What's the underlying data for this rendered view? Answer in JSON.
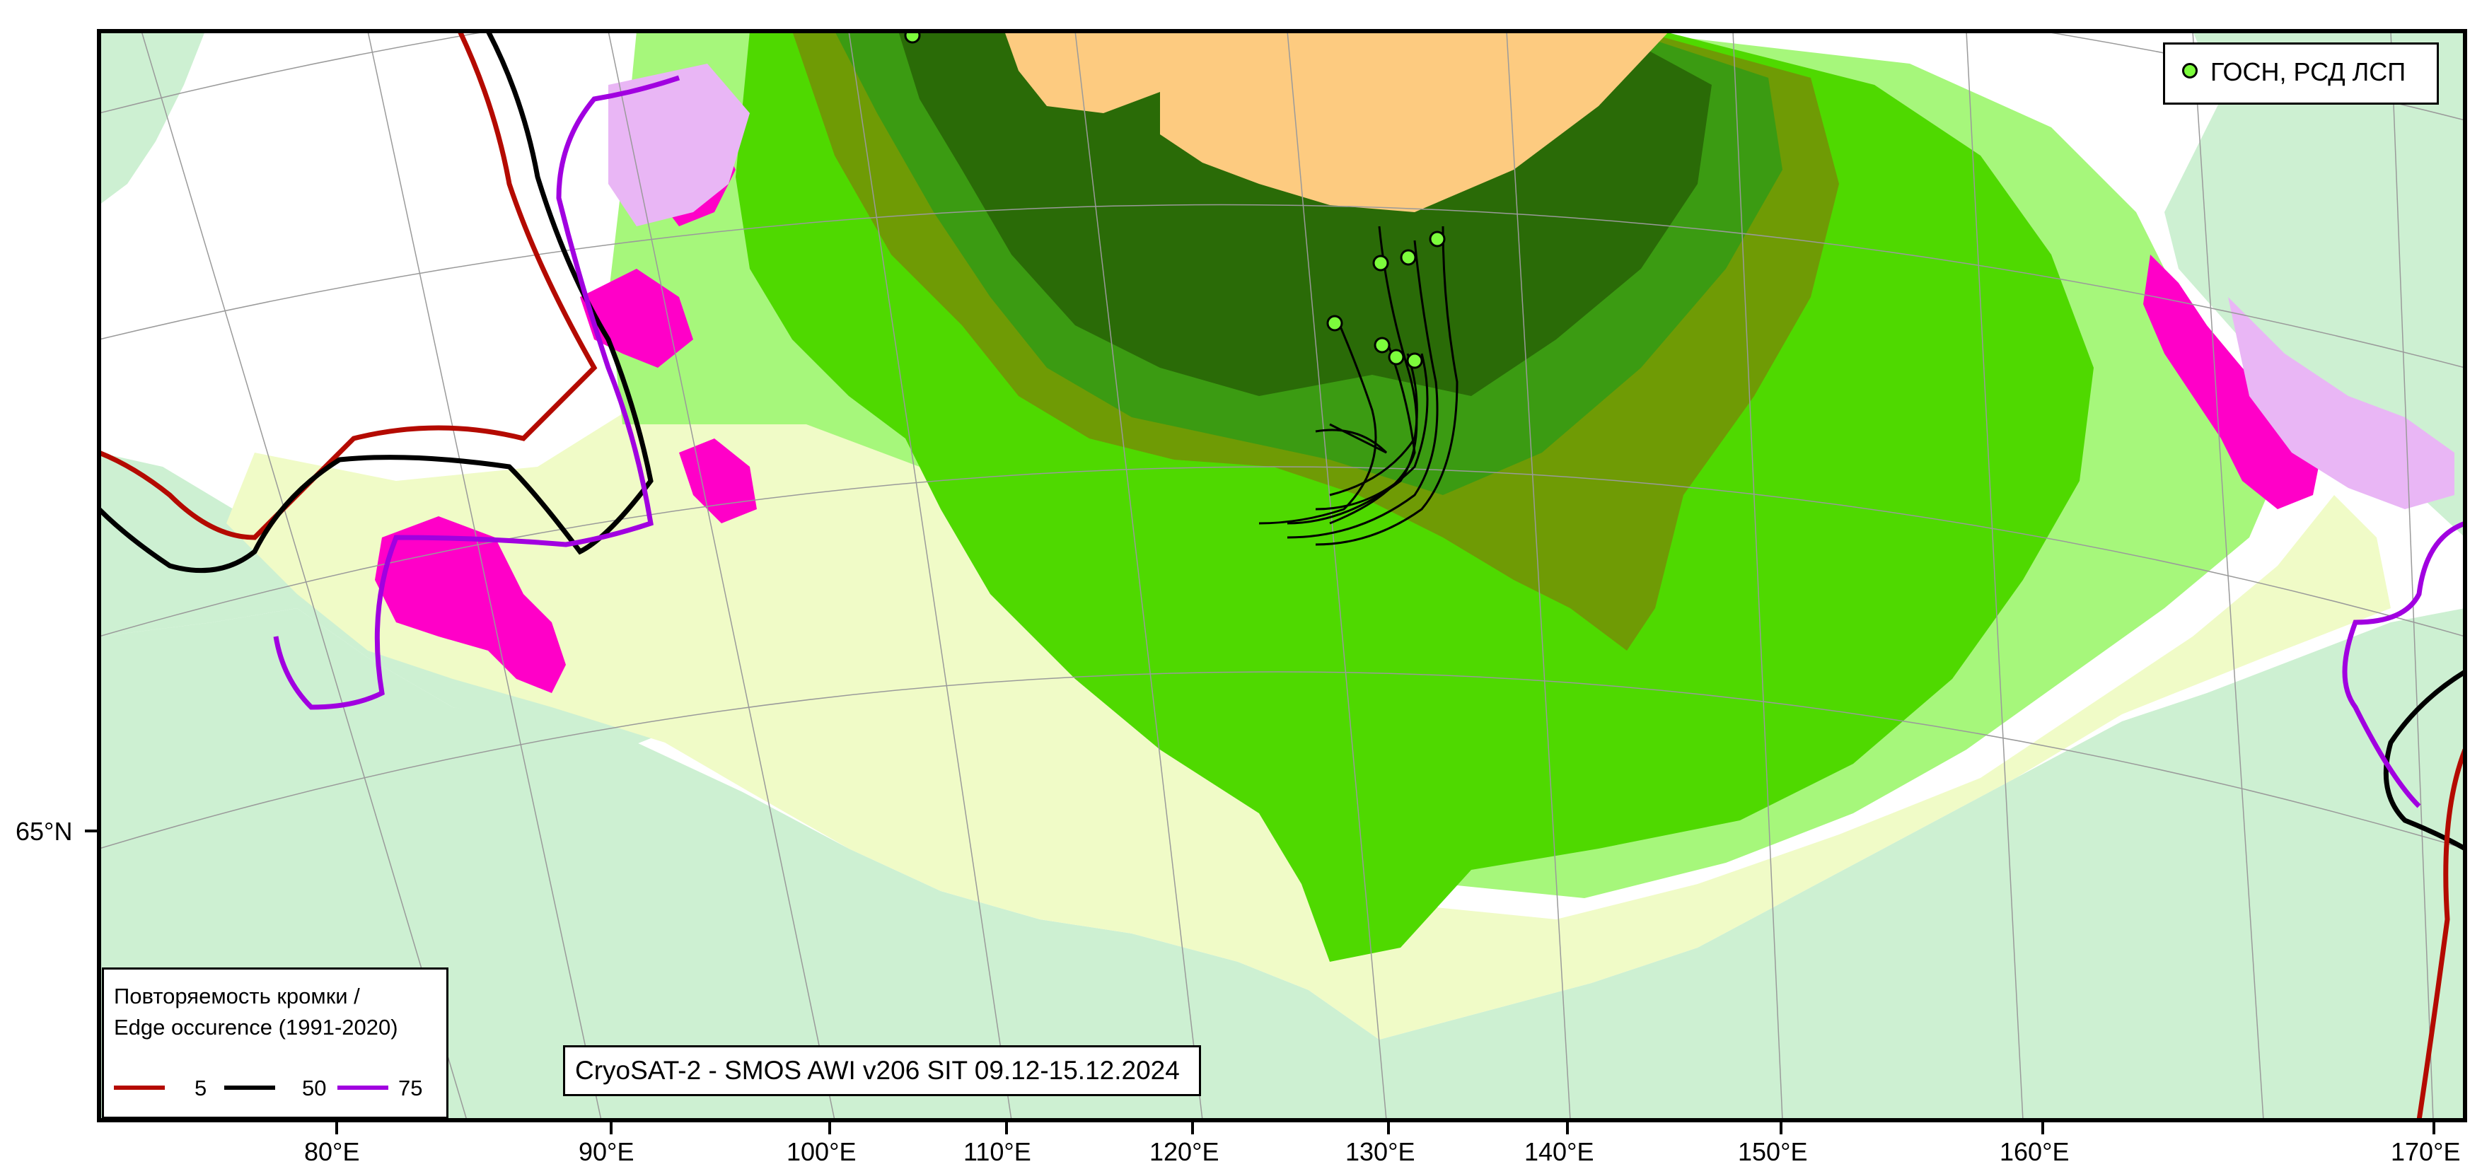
{
  "map": {
    "title_caption": "CryoSAT-2 - SMOS AWI v206 SIT 09.12-15.12.2024",
    "colors": {
      "land": "#cdf0d2",
      "very_thin_ice": "#f0fbc7",
      "thin_ice": "#a6f77b",
      "medium_ice": "#75e34d",
      "medium_ice_2": "#4fd900",
      "olive_ice": "#6f9b05",
      "thick_ice": "#3b9b12",
      "very_thick_ice": "#2a6b07",
      "pole_hole": "#fdcb80",
      "magenta_edge": "#ff00c8",
      "light_magenta": "#e9b6f5",
      "edge_5": "#b40a00",
      "edge_50": "#000000",
      "edge_75": "#a100e0",
      "drifter": "#7CFC3C"
    },
    "latitude_labels": [
      {
        "label": "65°N"
      }
    ],
    "longitude_labels": [
      {
        "label": "80°E"
      },
      {
        "label": "90°E"
      },
      {
        "label": "100°E"
      },
      {
        "label": "110°E"
      },
      {
        "label": "120°E"
      },
      {
        "label": "130°E"
      },
      {
        "label": "140°E"
      },
      {
        "label": "150°E"
      },
      {
        "label": "160°E"
      },
      {
        "label": "170°E"
      }
    ]
  },
  "legend_drifters": {
    "label": "ГОСН, РСД ЛСП",
    "icon": "green-circle-marker"
  },
  "legend_edge": {
    "title_line1": "Повторяемость кромки /",
    "title_line2": "Edge occurence (1991-2020)",
    "items": [
      {
        "value": "5",
        "color": "#b40a00"
      },
      {
        "value": "50",
        "color": "#000000"
      },
      {
        "value": "75",
        "color": "#a100e0"
      }
    ]
  }
}
